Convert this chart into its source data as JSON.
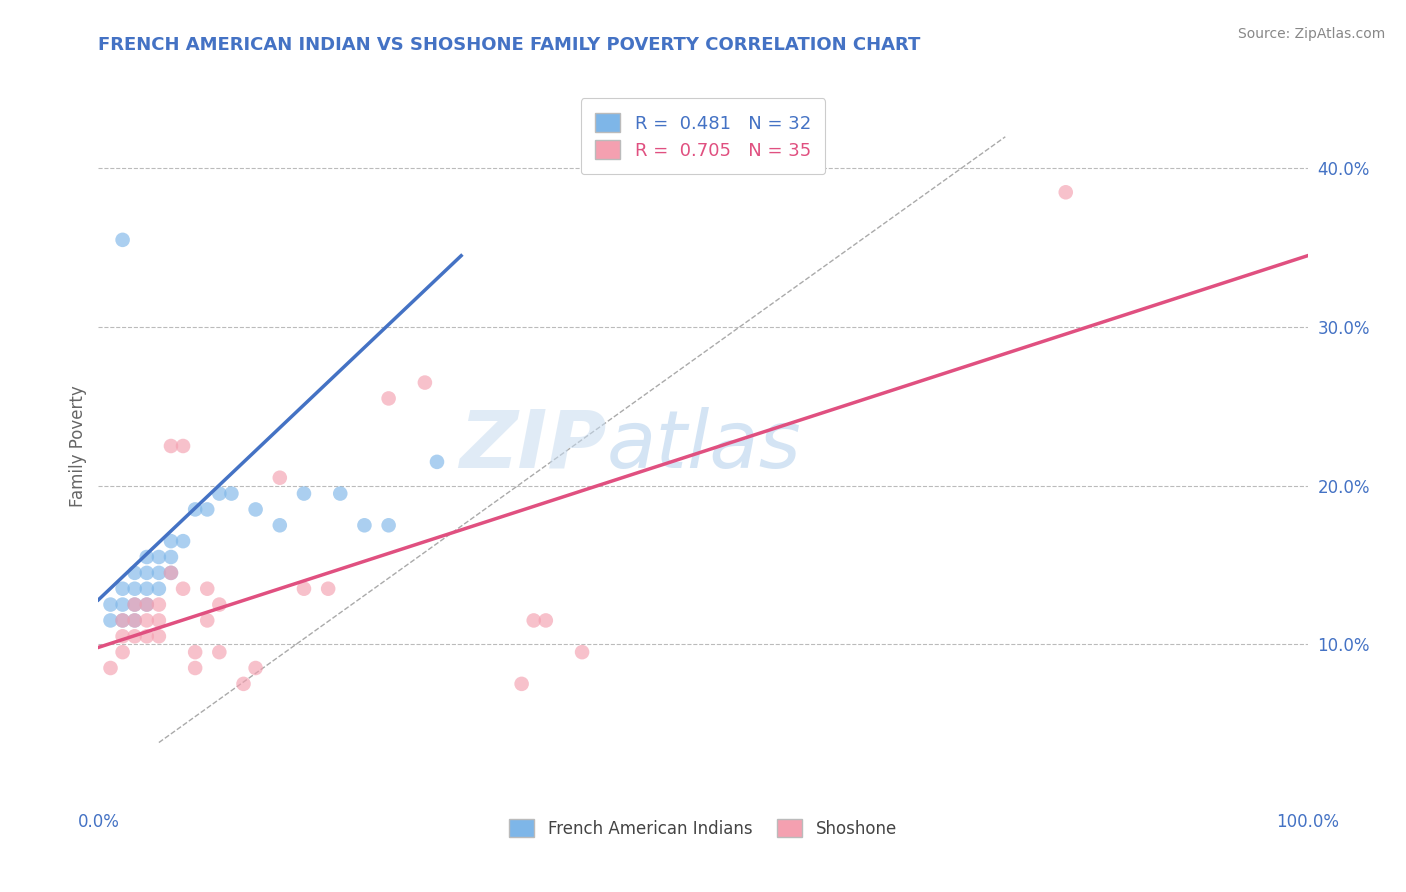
{
  "title": "FRENCH AMERICAN INDIAN VS SHOSHONE FAMILY POVERTY CORRELATION CHART",
  "source_text": "Source: ZipAtlas.com",
  "ylabel": "Family Poverty",
  "xlim": [
    0,
    1
  ],
  "ylim": [
    0,
    0.45
  ],
  "blue_color": "#7EB6E8",
  "pink_color": "#F4A0B0",
  "blue_line_color": "#4472C4",
  "pink_line_color": "#E05080",
  "blue_R": 0.481,
  "blue_N": 32,
  "pink_R": 0.705,
  "pink_N": 35,
  "watermark_zip": "ZIP",
  "watermark_atlas": "atlas",
  "background_color": "#FFFFFF",
  "grid_color": "#BBBBBB",
  "title_color": "#4472C4",
  "legend_label_blue": "French American Indians",
  "legend_label_pink": "Shoshone",
  "blue_scatter_x": [
    0.01,
    0.01,
    0.02,
    0.02,
    0.02,
    0.03,
    0.03,
    0.03,
    0.03,
    0.04,
    0.04,
    0.04,
    0.04,
    0.05,
    0.05,
    0.05,
    0.06,
    0.06,
    0.06,
    0.07,
    0.08,
    0.09,
    0.1,
    0.11,
    0.13,
    0.15,
    0.17,
    0.2,
    0.22,
    0.24,
    0.28,
    0.02
  ],
  "blue_scatter_y": [
    0.115,
    0.125,
    0.115,
    0.125,
    0.135,
    0.115,
    0.125,
    0.135,
    0.145,
    0.125,
    0.135,
    0.145,
    0.155,
    0.135,
    0.145,
    0.155,
    0.145,
    0.155,
    0.165,
    0.165,
    0.185,
    0.185,
    0.195,
    0.195,
    0.185,
    0.175,
    0.195,
    0.195,
    0.175,
    0.175,
    0.215,
    0.355
  ],
  "pink_scatter_x": [
    0.01,
    0.02,
    0.02,
    0.02,
    0.03,
    0.03,
    0.03,
    0.04,
    0.04,
    0.04,
    0.05,
    0.05,
    0.05,
    0.06,
    0.06,
    0.07,
    0.07,
    0.08,
    0.08,
    0.09,
    0.09,
    0.1,
    0.1,
    0.12,
    0.13,
    0.15,
    0.17,
    0.19,
    0.24,
    0.27,
    0.35,
    0.36,
    0.37,
    0.8,
    0.4
  ],
  "pink_scatter_y": [
    0.085,
    0.095,
    0.105,
    0.115,
    0.105,
    0.115,
    0.125,
    0.105,
    0.115,
    0.125,
    0.105,
    0.115,
    0.125,
    0.145,
    0.225,
    0.225,
    0.135,
    0.085,
    0.095,
    0.135,
    0.115,
    0.125,
    0.095,
    0.075,
    0.085,
    0.205,
    0.135,
    0.135,
    0.255,
    0.265,
    0.075,
    0.115,
    0.115,
    0.385,
    0.095
  ],
  "blue_line_x0": 0.0,
  "blue_line_y0": 0.128,
  "blue_line_x1": 0.3,
  "blue_line_y1": 0.345,
  "pink_line_x0": 0.0,
  "pink_line_y0": 0.098,
  "pink_line_x1": 1.0,
  "pink_line_y1": 0.345,
  "diag_line_x0": 0.05,
  "diag_line_y0": 0.038,
  "diag_line_x1": 0.75,
  "diag_line_y1": 0.42
}
